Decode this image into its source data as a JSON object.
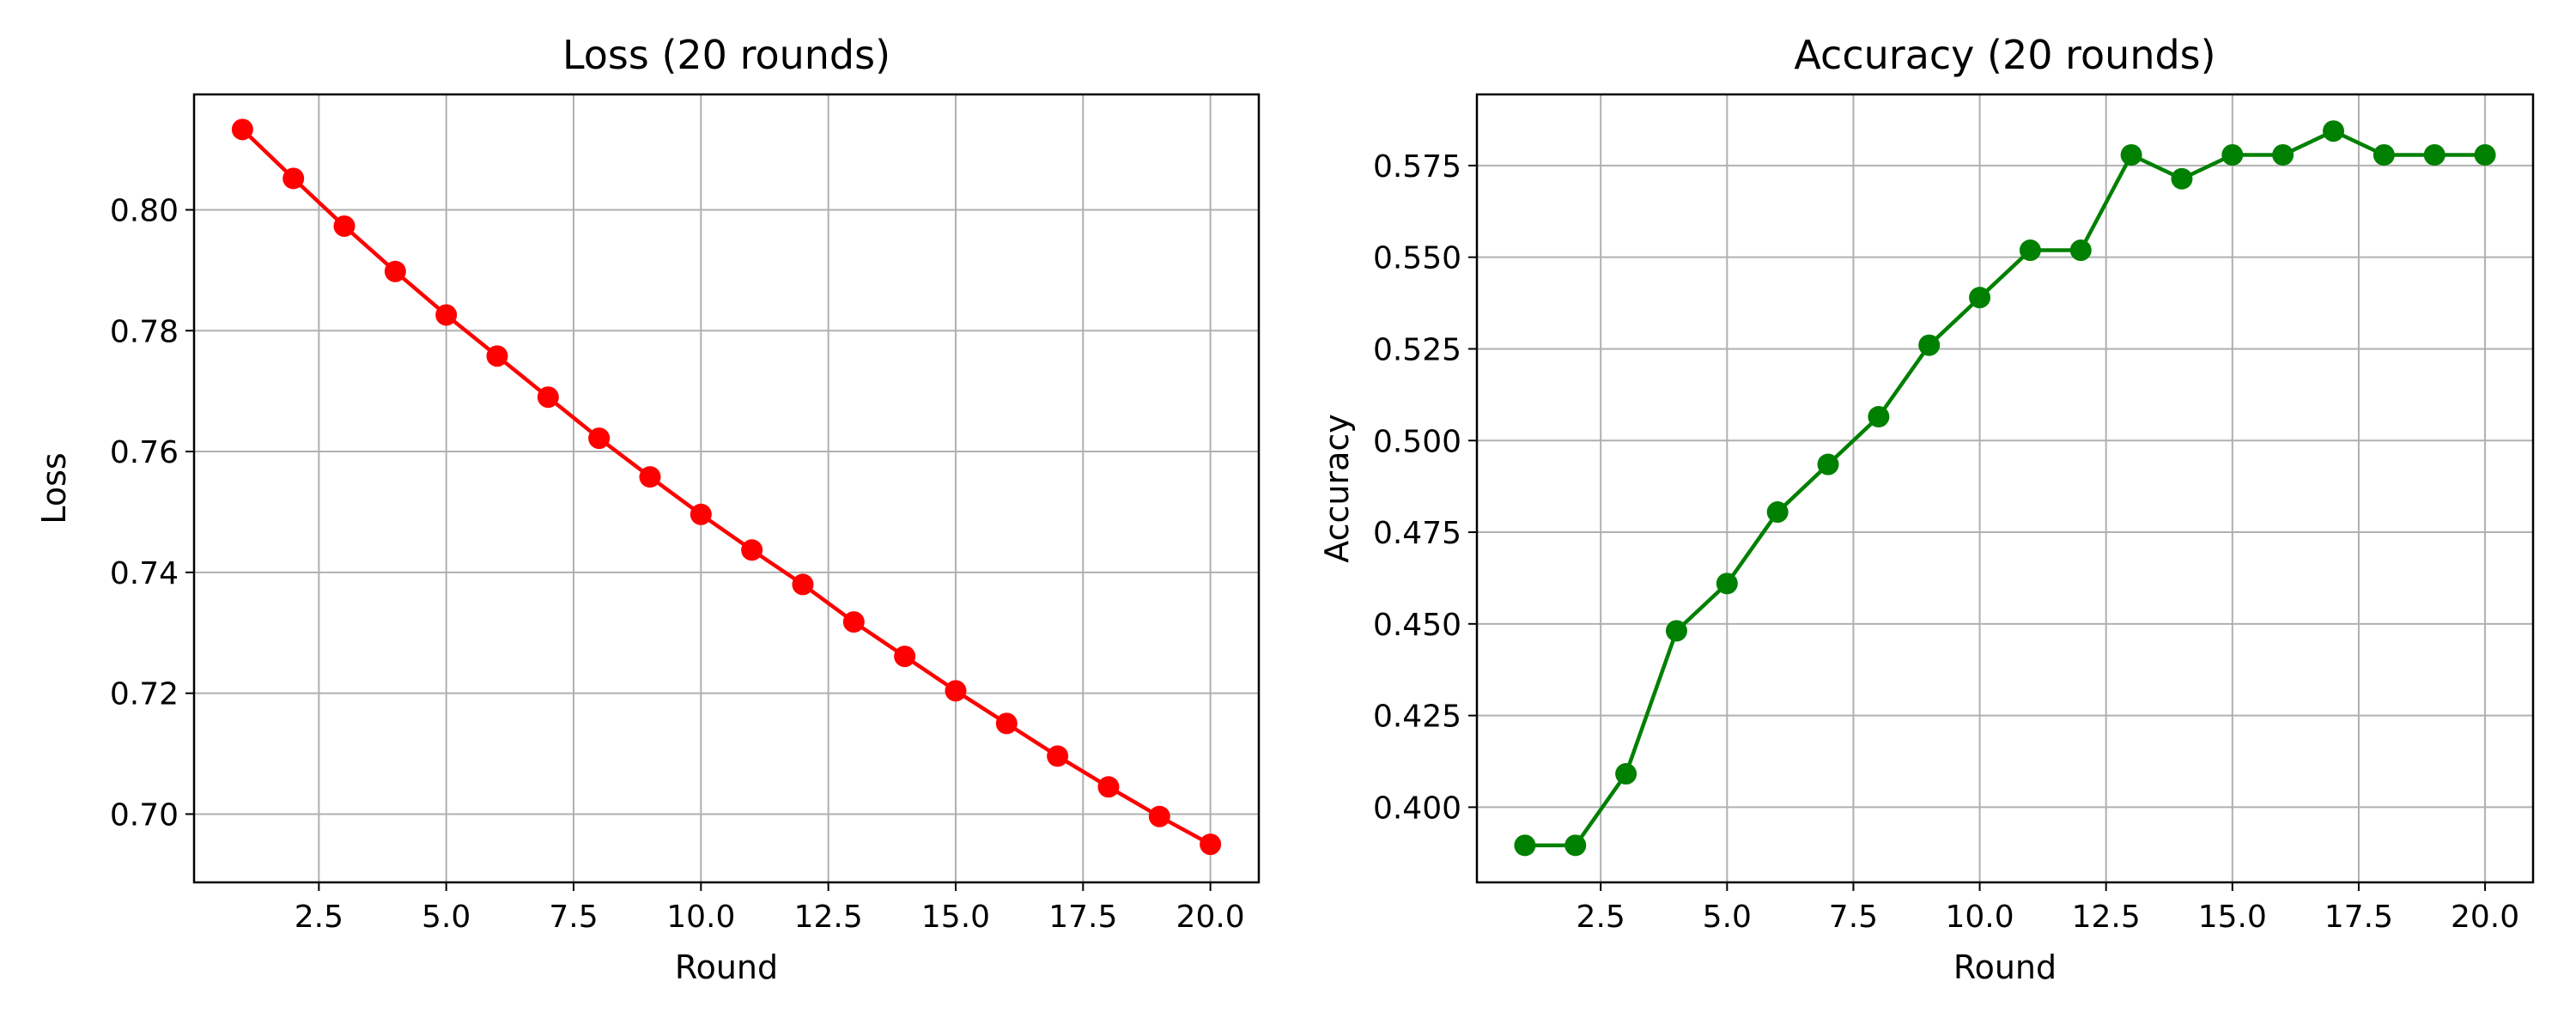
{
  "chart_data": [
    {
      "type": "line",
      "title": "Loss (20 rounds)",
      "xlabel": "Round",
      "ylabel": "Loss",
      "xlim": [
        0.05,
        20.95
      ],
      "ylim": [
        0.6887,
        0.8191
      ],
      "xticks": [
        "2.5",
        "5.0",
        "7.5",
        "10.0",
        "12.5",
        "15.0",
        "17.5",
        "20.0"
      ],
      "yticks": [
        "0.70",
        "0.72",
        "0.74",
        "0.76",
        "0.78",
        "0.80"
      ],
      "grid": true,
      "series": [
        {
          "color": "#ff0000",
          "marker": "circle",
          "x": [
            1,
            2,
            3,
            4,
            5,
            6,
            7,
            8,
            9,
            10,
            11,
            12,
            13,
            14,
            15,
            16,
            17,
            18,
            19,
            20
          ],
          "y": [
            0.8133,
            0.8052,
            0.7973,
            0.7898,
            0.7826,
            0.7758,
            0.769,
            0.7622,
            0.7558,
            0.7496,
            0.7437,
            0.738,
            0.7318,
            0.7261,
            0.7204,
            0.715,
            0.7096,
            0.7045,
            0.6996,
            0.695
          ]
        }
      ]
    },
    {
      "type": "line",
      "title": "Accuracy (20 rounds)",
      "xlabel": "Round",
      "ylabel": "Accuracy",
      "xlim": [
        0.05,
        20.95
      ],
      "ylim": [
        0.3795,
        0.5944
      ],
      "xticks": [
        "2.5",
        "5.0",
        "7.5",
        "10.0",
        "12.5",
        "15.0",
        "17.5",
        "20.0"
      ],
      "yticks": [
        "0.400",
        "0.425",
        "0.450",
        "0.475",
        "0.500",
        "0.525",
        "0.550",
        "0.575"
      ],
      "grid": true,
      "series": [
        {
          "color": "#008000",
          "marker": "circle",
          "x": [
            1,
            2,
            3,
            4,
            5,
            6,
            7,
            8,
            9,
            10,
            11,
            12,
            13,
            14,
            15,
            16,
            17,
            18,
            19,
            20
          ],
          "y": [
            0.3896,
            0.3896,
            0.4091,
            0.4481,
            0.461,
            0.4805,
            0.4935,
            0.5065,
            0.526,
            0.539,
            0.5519,
            0.5519,
            0.5779,
            0.5714,
            0.5779,
            0.5779,
            0.5844,
            0.5779,
            0.5779,
            0.5779
          ]
        }
      ]
    }
  ]
}
